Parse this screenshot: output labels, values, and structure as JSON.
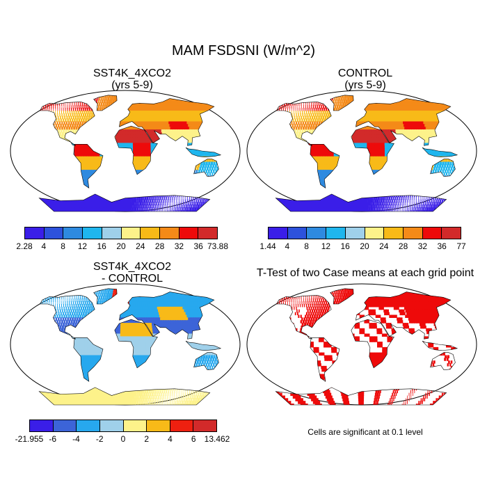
{
  "title": "MAM FSDSNI (W/m^2)",
  "panels": [
    {
      "id": "sst4k",
      "title_line1": "SST4K_4XCO2",
      "title_line2": "(yrs 5-9)",
      "colorbar": {
        "colors": [
          "#3a1ee8",
          "#2d52dc",
          "#2e8ae0",
          "#1fb6ee",
          "#9fd0ea",
          "#fdf28a",
          "#f8ba18",
          "#f48a18",
          "#ee0a0a",
          "#d22a2a"
        ],
        "labels": [
          "2.28",
          "4",
          "8",
          "12",
          "16",
          "20",
          "24",
          "28",
          "32",
          "36",
          "73.88"
        ]
      }
    },
    {
      "id": "control",
      "title_line1": "CONTROL",
      "title_line2": "(yrs 5-9)",
      "colorbar": {
        "colors": [
          "#3a1ee8",
          "#2d52dc",
          "#2e8ae0",
          "#1fb6ee",
          "#9fd0ea",
          "#fdf28a",
          "#f8ba18",
          "#f48a18",
          "#ee0a0a",
          "#d22a2a"
        ],
        "labels": [
          "1.44",
          "4",
          "8",
          "12",
          "16",
          "20",
          "24",
          "28",
          "32",
          "36",
          "77"
        ]
      }
    },
    {
      "id": "diff",
      "title_line1": "SST4K_4XCO2",
      "title_line2": "- CONTROL",
      "colorbar": {
        "colors": [
          "#3a1ee8",
          "#3c64d8",
          "#27a8ee",
          "#9fd0ea",
          "#fdf28a",
          "#f8ba18",
          "#ee2010",
          "#d22a2a"
        ],
        "labels": [
          "-21.955",
          "-6",
          "-4",
          "-2",
          "0",
          "2",
          "4",
          "6",
          "13.462"
        ]
      }
    },
    {
      "id": "ttest",
      "title_line1": "T-Test of two Case means at each grid point",
      "title_line2": "",
      "note": "Cells are significant at 0.1 level",
      "sig_color": "#ee0a0a"
    }
  ]
}
